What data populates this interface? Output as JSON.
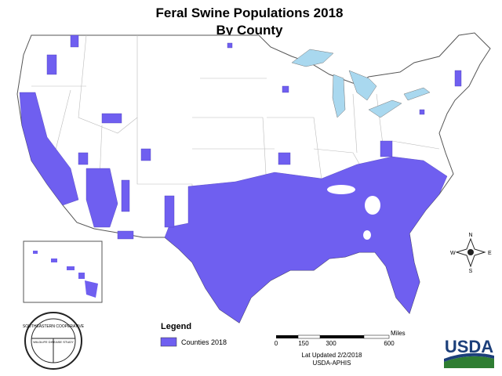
{
  "header": {
    "title": "Feral Swine Populations 2018",
    "subtitle": "By County"
  },
  "compass": {
    "north": "N",
    "south": "S",
    "east": "E",
    "west": "W"
  },
  "legend": {
    "title": "Legend",
    "items": [
      {
        "label": "Counties 2018",
        "color": "#6f5ff0"
      }
    ]
  },
  "scale": {
    "unit": "Miles",
    "ticks": [
      "0",
      "150",
      "300",
      "600"
    ]
  },
  "footer": {
    "updated": "Lat Updated 2/2/2018",
    "source": "USDA-APHIS"
  },
  "logos": {
    "cooperative": "SOUTHEASTERN COOPERATIVE",
    "study": "WILDLIFE DISEASE STUDY",
    "agency": "USDA"
  }
}
